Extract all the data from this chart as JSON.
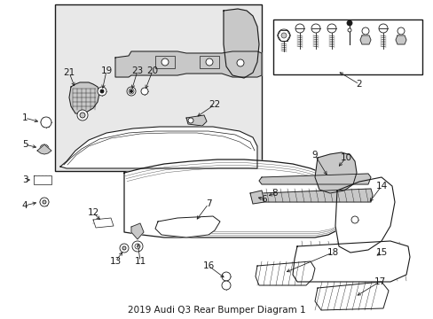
{
  "title": "2019 Audi Q3 Rear Bumper Diagram 1",
  "bg": "#ffffff",
  "fg": "#1a1a1a",
  "gray_light": "#e8e8e8",
  "gray_mid": "#c8c8c8",
  "gray_dark": "#a0a0a0",
  "fig_w": 4.89,
  "fig_h": 3.6,
  "dpi": 100
}
